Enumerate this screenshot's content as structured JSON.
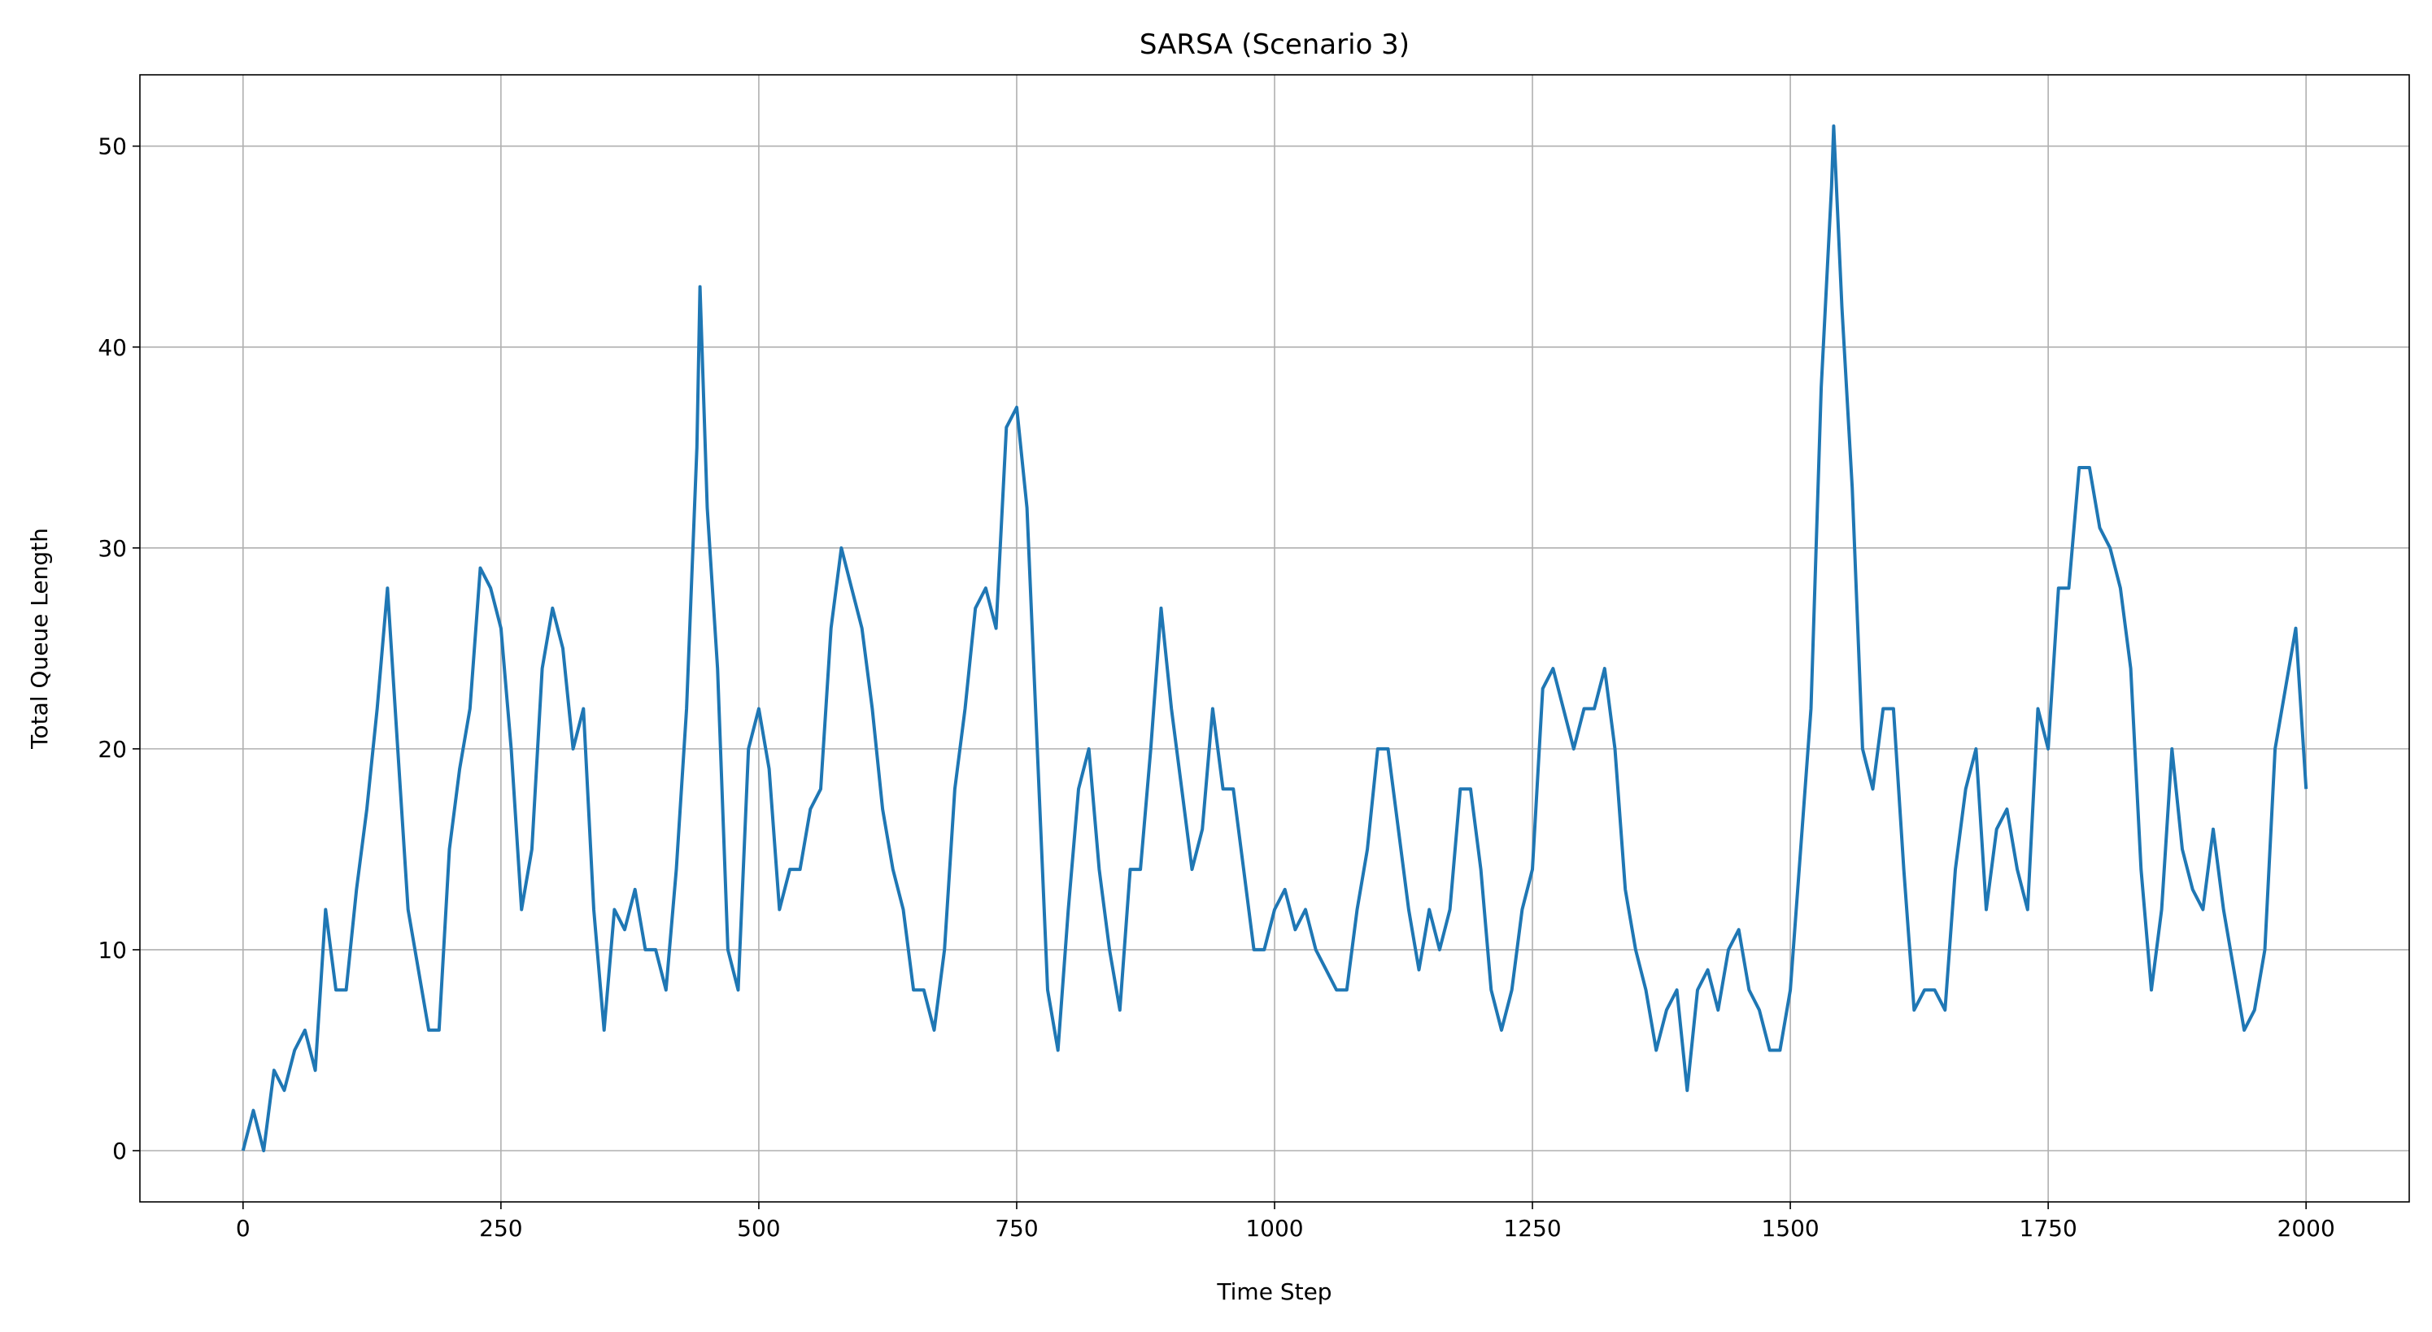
{
  "chart_data": {
    "type": "line",
    "title": "SARSA (Scenario 3)",
    "x_label": "Time Step",
    "y_label": "Total Queue Length",
    "x": [
      0,
      10,
      20,
      30,
      40,
      50,
      60,
      70,
      80,
      90,
      100,
      110,
      120,
      130,
      140,
      150,
      160,
      170,
      180,
      190,
      200,
      210,
      220,
      230,
      240,
      250,
      260,
      270,
      280,
      290,
      300,
      310,
      320,
      330,
      340,
      350,
      360,
      370,
      380,
      390,
      400,
      410,
      420,
      430,
      440,
      443,
      450,
      460,
      470,
      480,
      490,
      500,
      510,
      520,
      530,
      540,
      550,
      560,
      570,
      580,
      590,
      600,
      610,
      620,
      630,
      640,
      650,
      660,
      670,
      680,
      690,
      700,
      710,
      720,
      730,
      740,
      750,
      760,
      770,
      780,
      790,
      800,
      810,
      820,
      830,
      840,
      850,
      860,
      870,
      880,
      890,
      900,
      910,
      920,
      930,
      940,
      950,
      960,
      970,
      980,
      990,
      1000,
      1010,
      1020,
      1030,
      1040,
      1050,
      1060,
      1070,
      1080,
      1090,
      1100,
      1110,
      1120,
      1130,
      1140,
      1150,
      1160,
      1170,
      1180,
      1190,
      1200,
      1210,
      1220,
      1230,
      1240,
      1250,
      1260,
      1270,
      1280,
      1290,
      1300,
      1310,
      1320,
      1330,
      1340,
      1350,
      1360,
      1370,
      1380,
      1390,
      1400,
      1410,
      1420,
      1430,
      1440,
      1450,
      1460,
      1470,
      1480,
      1490,
      1500,
      1510,
      1520,
      1530,
      1540,
      1542,
      1550,
      1560,
      1570,
      1580,
      1590,
      1600,
      1610,
      1620,
      1630,
      1640,
      1650,
      1660,
      1670,
      1680,
      1690,
      1700,
      1710,
      1720,
      1730,
      1740,
      1750,
      1760,
      1770,
      1780,
      1790,
      1800,
      1810,
      1820,
      1830,
      1840,
      1850,
      1860,
      1870,
      1880,
      1890,
      1900,
      1910,
      1920,
      1930,
      1940,
      1950,
      1960,
      1970,
      1980,
      1990,
      2000
    ],
    "series": [
      {
        "name": "SARSA",
        "color": "#1f77b4",
        "values": [
          0,
          2,
          0,
          4,
          3,
          5,
          6,
          4,
          12,
          8,
          8,
          13,
          17,
          22,
          28,
          20,
          12,
          9,
          6,
          6,
          15,
          19,
          22,
          29,
          28,
          26,
          20,
          12,
          15,
          24,
          27,
          25,
          20,
          22,
          12,
          6,
          12,
          11,
          13,
          10,
          10,
          8,
          14,
          22,
          35,
          43,
          32,
          24,
          10,
          8,
          20,
          22,
          19,
          12,
          14,
          14,
          17,
          18,
          26,
          30,
          28,
          26,
          22,
          17,
          14,
          12,
          8,
          8,
          6,
          10,
          18,
          22,
          27,
          28,
          26,
          36,
          37,
          32,
          20,
          8,
          5,
          12,
          18,
          20,
          14,
          10,
          7,
          14,
          14,
          20,
          27,
          22,
          18,
          14,
          16,
          22,
          18,
          18,
          14,
          10,
          10,
          12,
          13,
          11,
          12,
          10,
          9,
          8,
          8,
          12,
          15,
          20,
          20,
          16,
          12,
          9,
          12,
          10,
          12,
          18,
          18,
          14,
          8,
          6,
          8,
          12,
          14,
          23,
          24,
          22,
          20,
          22,
          22,
          24,
          20,
          13,
          10,
          8,
          5,
          7,
          8,
          3,
          8,
          9,
          7,
          10,
          11,
          8,
          7,
          5,
          5,
          8,
          15,
          22,
          38,
          48,
          51,
          42,
          33,
          20,
          18,
          22,
          22,
          14,
          7,
          8,
          8,
          7,
          14,
          18,
          20,
          12,
          16,
          17,
          14,
          12,
          22,
          20,
          28,
          28,
          34,
          34,
          31,
          30,
          28,
          24,
          14,
          8,
          12,
          20,
          15,
          13,
          12,
          16,
          12,
          9,
          6,
          7,
          10,
          20,
          23,
          26,
          18
        ]
      }
    ],
    "xlim": [
      -100,
      2100
    ],
    "ylim": [
      -2.55,
      53.55
    ],
    "xticks": [
      0,
      250,
      500,
      750,
      1000,
      1250,
      1500,
      1750,
      2000
    ],
    "yticks": [
      0,
      10,
      20,
      30,
      40,
      50
    ],
    "grid": true
  }
}
